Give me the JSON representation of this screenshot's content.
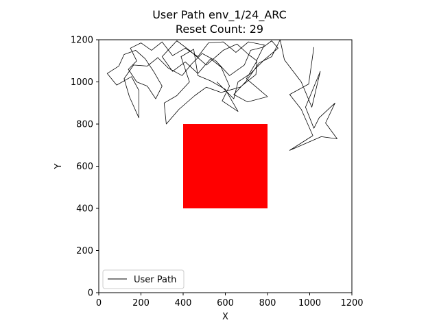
{
  "chart_data": {
    "type": "line",
    "title": "User Path env_1/24_ARC",
    "subtitle": "Reset Count: 29",
    "xlabel": "X",
    "ylabel": "Y",
    "xlim": [
      0,
      1200
    ],
    "ylim": [
      0,
      1200
    ],
    "xticks": [
      "0",
      "200",
      "400",
      "600",
      "800",
      "1000",
      "1200"
    ],
    "yticks": [
      "0",
      "200",
      "400",
      "600",
      "800",
      "1000",
      "1200"
    ],
    "grid": false,
    "legend": {
      "position": "lower-left",
      "entries": [
        "User Path"
      ]
    },
    "obstacle": {
      "x": [
        400,
        800
      ],
      "y": [
        400,
        800
      ],
      "color": "#ff0000"
    },
    "series": [
      {
        "name": "User Path",
        "color": "#000000",
        "points": [
          [
            1020,
            1165
          ],
          [
            995,
            990
          ],
          [
            905,
            940
          ],
          [
            960,
            870
          ],
          [
            1015,
            745
          ],
          [
            905,
            675
          ],
          [
            1055,
            740
          ],
          [
            1130,
            730
          ],
          [
            1075,
            805
          ],
          [
            1120,
            900
          ],
          [
            1045,
            830
          ],
          [
            1020,
            780
          ],
          [
            980,
            880
          ],
          [
            1050,
            1050
          ],
          [
            1010,
            880
          ],
          [
            960,
            1000
          ],
          [
            880,
            1105
          ],
          [
            860,
            1200
          ],
          [
            820,
            1120
          ],
          [
            760,
            1090
          ],
          [
            700,
            1005
          ],
          [
            640,
            940
          ],
          [
            705,
            905
          ],
          [
            800,
            930
          ],
          [
            700,
            1015
          ],
          [
            750,
            1100
          ],
          [
            710,
            1130
          ],
          [
            655,
            1180
          ],
          [
            590,
            1150
          ],
          [
            510,
            1080
          ],
          [
            430,
            1150
          ],
          [
            370,
            1195
          ],
          [
            300,
            1120
          ],
          [
            350,
            1050
          ],
          [
            410,
            1095
          ],
          [
            470,
            1040
          ],
          [
            530,
            1110
          ],
          [
            580,
            1070
          ],
          [
            620,
            980
          ],
          [
            585,
            910
          ],
          [
            660,
            860
          ],
          [
            600,
            965
          ],
          [
            530,
            1005
          ],
          [
            470,
            1030
          ],
          [
            450,
            1155
          ],
          [
            390,
            1120
          ],
          [
            430,
            1000
          ],
          [
            370,
            935
          ],
          [
            310,
            900
          ],
          [
            320,
            800
          ],
          [
            380,
            870
          ],
          [
            455,
            935
          ],
          [
            510,
            975
          ],
          [
            580,
            950
          ],
          [
            670,
            975
          ],
          [
            745,
            1035
          ],
          [
            750,
            1105
          ],
          [
            785,
            1175
          ],
          [
            710,
            1190
          ],
          [
            650,
            1140
          ],
          [
            590,
            1190
          ],
          [
            520,
            1185
          ],
          [
            470,
            1120
          ],
          [
            410,
            1160
          ],
          [
            350,
            1125
          ],
          [
            300,
            1190
          ],
          [
            250,
            1150
          ],
          [
            200,
            1185
          ],
          [
            150,
            1160
          ],
          [
            180,
            1100
          ],
          [
            140,
            1060
          ],
          [
            180,
            1000
          ],
          [
            230,
            980
          ],
          [
            270,
            920
          ],
          [
            300,
            980
          ],
          [
            260,
            1050
          ],
          [
            220,
            1110
          ],
          [
            175,
            1150
          ],
          [
            120,
            1130
          ],
          [
            95,
            1075
          ],
          [
            40,
            1040
          ],
          [
            85,
            985
          ],
          [
            155,
            1025
          ],
          [
            190,
            960
          ],
          [
            190,
            830
          ],
          [
            145,
            930
          ],
          [
            120,
            1015
          ],
          [
            165,
            1080
          ],
          [
            230,
            1075
          ],
          [
            280,
            1115
          ],
          [
            330,
            1065
          ],
          [
            395,
            1030
          ],
          [
            440,
            1085
          ],
          [
            490,
            1135
          ],
          [
            555,
            1100
          ],
          [
            620,
            1030
          ],
          [
            690,
            1080
          ],
          [
            720,
            1150
          ],
          [
            780,
            1165
          ],
          [
            820,
            1195
          ],
          [
            850,
            1160
          ],
          [
            785,
            1105
          ],
          [
            720,
            1040
          ],
          [
            660,
            1000
          ],
          [
            640,
            920
          ],
          [
            600,
            960
          ],
          [
            560,
            1000
          ]
        ]
      }
    ]
  }
}
